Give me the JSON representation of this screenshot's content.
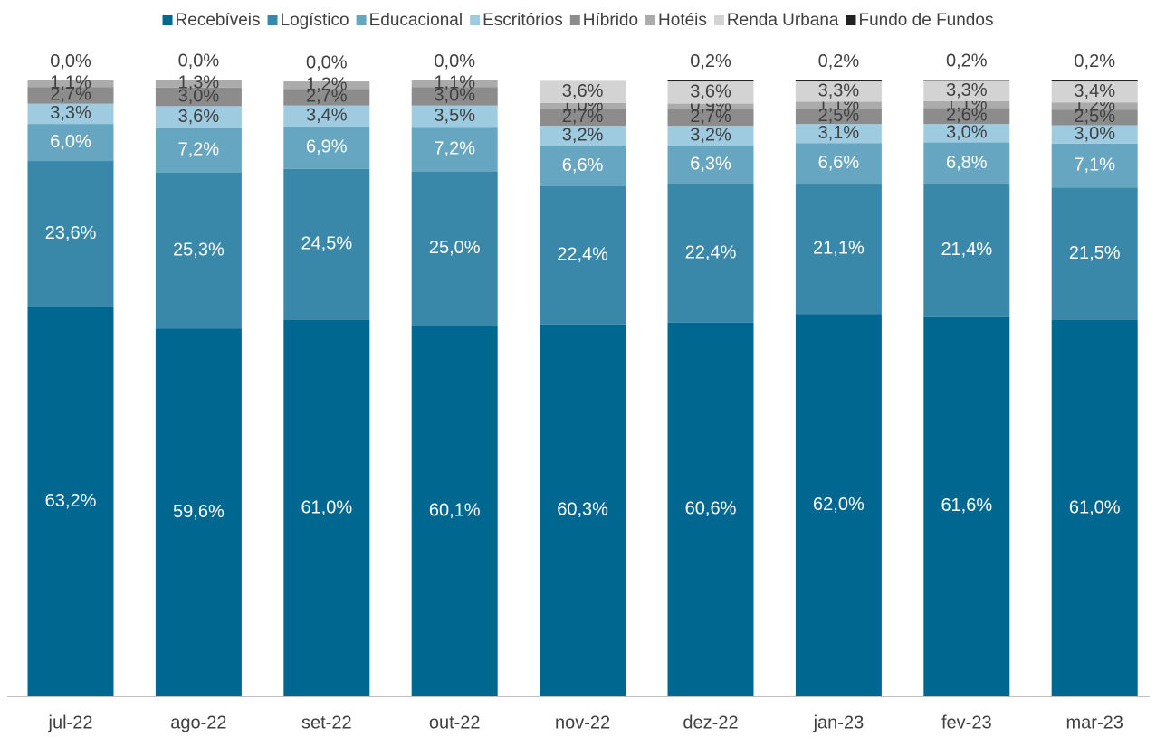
{
  "chart_data": {
    "type": "stacked_bar",
    "categories": [
      "jul-22",
      "ago-22",
      "set-22",
      "out-22",
      "nov-22",
      "dez-22",
      "jan-23",
      "fev-23",
      "mar-23"
    ],
    "ylim": [
      0,
      100
    ],
    "legend": "top",
    "series": [
      {
        "name": "Recebíveis",
        "color": "#006890",
        "values": [
          63.2,
          59.6,
          61.0,
          60.1,
          60.3,
          60.6,
          62.0,
          61.6,
          61.0
        ],
        "value_labels": [
          "63,2%",
          "59,6%",
          "61,0%",
          "60,1%",
          "60,3%",
          "60,6%",
          "62,0%",
          "61,6%",
          "61,0%"
        ]
      },
      {
        "name": "Logístico",
        "color": "#3988a9",
        "values": [
          23.6,
          25.3,
          24.5,
          25.0,
          22.4,
          22.4,
          21.1,
          21.4,
          21.5
        ],
        "value_labels": [
          "23,6%",
          "25,3%",
          "24,5%",
          "25,0%",
          "22,4%",
          "22,4%",
          "21,1%",
          "21,4%",
          "21,5%"
        ]
      },
      {
        "name": "Educacional",
        "color": "#66a6c0",
        "values": [
          6.0,
          7.2,
          6.9,
          7.2,
          6.6,
          6.3,
          6.6,
          6.8,
          7.1
        ],
        "value_labels": [
          "6,0%",
          "7,2%",
          "6,9%",
          "7,2%",
          "6,6%",
          "6,3%",
          "6,6%",
          "6,8%",
          "7,1%"
        ]
      },
      {
        "name": "Escritórios",
        "color": "#9fcbe0",
        "values": [
          3.3,
          3.6,
          3.4,
          3.5,
          3.2,
          3.2,
          3.1,
          3.0,
          3.0
        ],
        "value_labels": [
          "3,3%",
          "3,6%",
          "3,4%",
          "3,5%",
          "3,2%",
          "3,2%",
          "3,1%",
          "3,0%",
          "3,0%"
        ]
      },
      {
        "name": "Híbrido",
        "color": "#8c8c8c",
        "values": [
          2.7,
          3.0,
          2.7,
          3.0,
          2.7,
          2.7,
          2.5,
          2.6,
          2.5
        ],
        "value_labels": [
          "2,7%",
          "3,0%",
          "2,7%",
          "3,0%",
          "2,7%",
          "2,7%",
          "2,5%",
          "2,6%",
          "2,5%"
        ]
      },
      {
        "name": "Hotéis",
        "color": "#ababab",
        "values": [
          1.1,
          1.3,
          1.2,
          1.1,
          1.0,
          0.9,
          1.1,
          1.1,
          1.2
        ],
        "value_labels": [
          "1,1%",
          "1,3%",
          "1,2%",
          "1,1%",
          "1,0%",
          "0,9%",
          "1,1%",
          "1,1%",
          "1,2%"
        ]
      },
      {
        "name": "Renda Urbana",
        "color": "#d3d3d3",
        "values": [
          null,
          null,
          null,
          null,
          3.6,
          3.6,
          3.3,
          3.3,
          3.4
        ],
        "value_labels": [
          null,
          null,
          null,
          null,
          "3,6%",
          "3,6%",
          "3,3%",
          "3,3%",
          "3,4%"
        ]
      },
      {
        "name": "Fundo de Fundos",
        "color": "#222222",
        "values": [
          0.0,
          0.0,
          0.0,
          0.0,
          null,
          0.2,
          0.2,
          0.2,
          0.2
        ],
        "value_labels": [
          "0,0%",
          "0,0%",
          "0,0%",
          "0,0%",
          null,
          "0,2%",
          "0,2%",
          "0,2%",
          "0,2%"
        ]
      }
    ]
  }
}
